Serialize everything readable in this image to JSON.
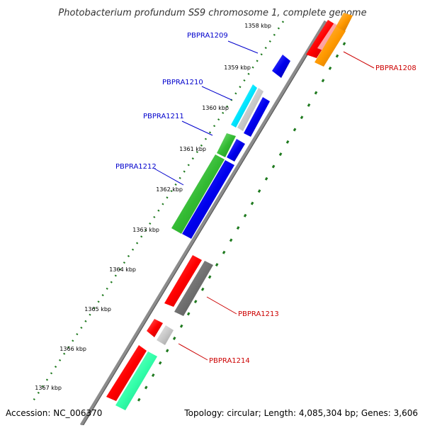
{
  "title": "Photobacterium profundum SS9 chromosome 1, complete genome",
  "footer": {
    "accession": "Accession: NC_006370",
    "topology": "Topology: circular; Length: 4,085,304 bp; Genes: 3,606"
  },
  "colors": {
    "backbone": "#8c8c8c",
    "tick": "#1f7a1f",
    "label_forward": "#0000cc",
    "label_reverse": "#cc0000"
  },
  "ticks": [
    {
      "label": "1358 kbp"
    },
    {
      "label": "1359 kbp"
    },
    {
      "label": "1360 kbp"
    },
    {
      "label": "1361 kbp"
    },
    {
      "label": "1362 kbp"
    },
    {
      "label": "1363 kbp"
    },
    {
      "label": "1364 kbp"
    },
    {
      "label": "1365 kbp"
    },
    {
      "label": "1366 kbp"
    },
    {
      "label": "1367 kbp"
    }
  ],
  "gene_labels": [
    {
      "text": "PBPRA1208",
      "strand": "reverse"
    },
    {
      "text": "PBPRA1209",
      "strand": "forward"
    },
    {
      "text": "PBPRA1210",
      "strand": "forward"
    },
    {
      "text": "PBPRA1211",
      "strand": "forward"
    },
    {
      "text": "PBPRA1212",
      "strand": "forward"
    },
    {
      "text": "PBPRA1213",
      "strand": "reverse"
    },
    {
      "text": "PBPRA1214",
      "strand": "reverse"
    }
  ]
}
